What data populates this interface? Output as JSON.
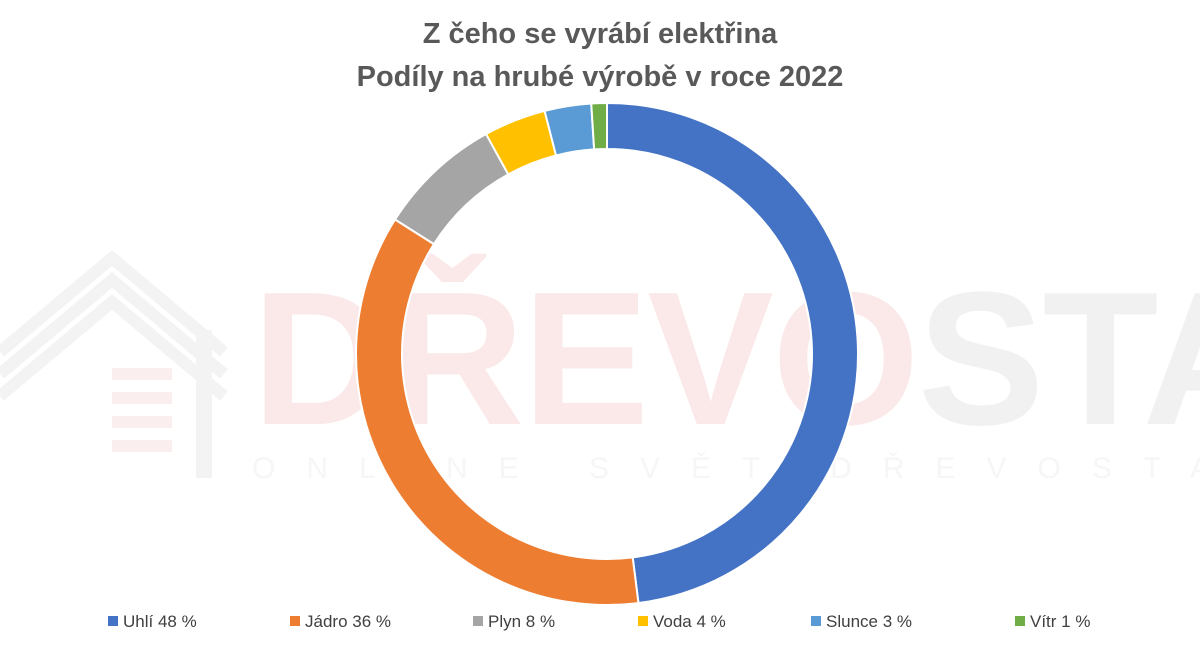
{
  "chart_data": {
    "type": "donut",
    "title": "Z čeho se vyrábí elektřina",
    "subtitle": "Podíly na hrubé výrobě v roce 2022",
    "categories": [
      "Uhlí",
      "Jádro",
      "Plyn",
      "Voda",
      "Slunce",
      "Vítr"
    ],
    "values": [
      48,
      36,
      8,
      4,
      3,
      1
    ],
    "legend_labels": [
      "Uhlí 48 %",
      "Jádro 36 %",
      "Plyn 8 %",
      "Voda 4 %",
      "Slunce 3 %",
      "Vítr 1 %"
    ],
    "colors": [
      "#4472c4",
      "#ed7d31",
      "#a5a5a5",
      "#ffc000",
      "#5b9bd5",
      "#70ad47"
    ],
    "legend_position": "bottom"
  },
  "watermark": {
    "brand_part1": "DŘEVO",
    "brand_part2": "STAVITEL",
    "tagline": "ONLINE SVĚT DŘEVOSTAVEB",
    "color_part1": "#fbe9e9",
    "color_part2": "#f1f1f1"
  }
}
